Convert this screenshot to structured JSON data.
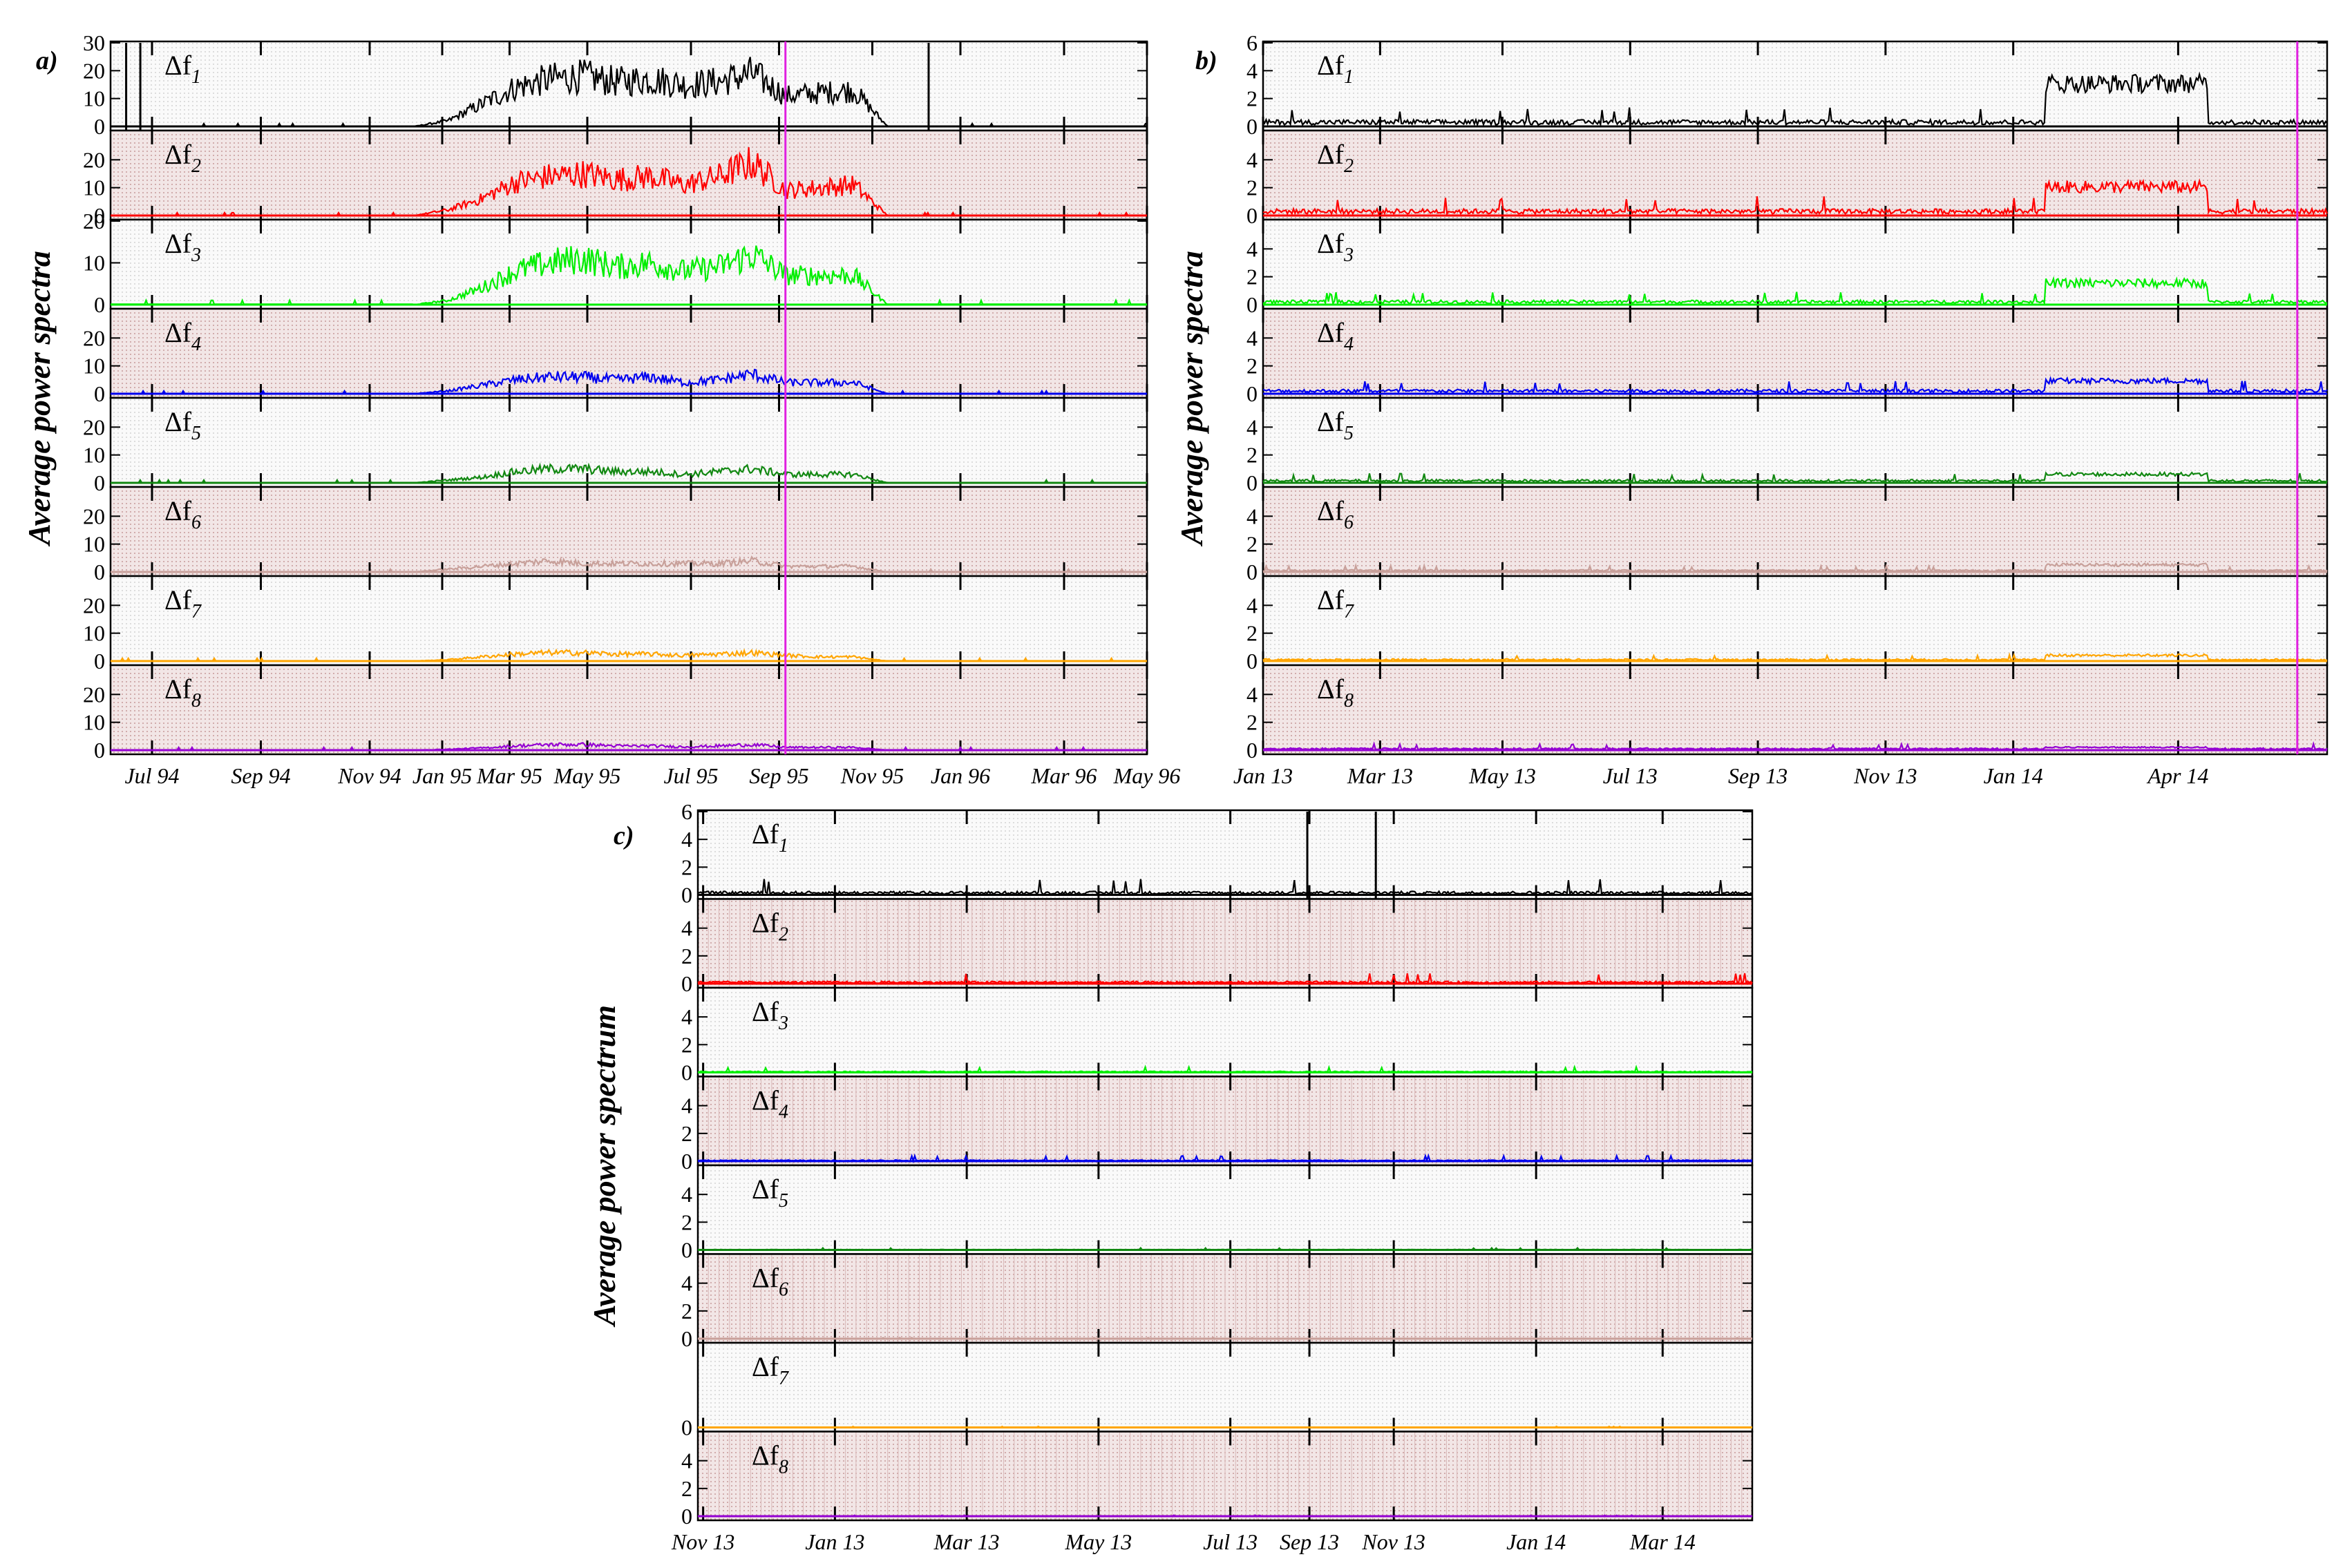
{
  "figure": {
    "colors": {
      "background_odd": "#f2f2f2",
      "background_even": "#e6cfcf",
      "cursor": "#e020e0"
    },
    "series_colors": [
      "#000000",
      "#ff0000",
      "#00ee00",
      "#0000ee",
      "#118811",
      "#c8a09a",
      "#ffa500",
      "#9400d3"
    ],
    "row_labels": [
      "Δf1",
      "Δf2",
      "Δf3",
      "Δf4",
      "Δf5",
      "Δf6",
      "Δf7",
      "Δf8"
    ]
  },
  "chart_data": [
    {
      "panel": "a)",
      "type": "line",
      "ylabel": "Average power spectra",
      "x_ticks": [
        "Jul 94",
        "Sep 94",
        "Nov 94",
        "Jan 95",
        "Mar 95",
        "May 95",
        "Jul 95",
        "Sep 95",
        "Nov 95",
        "Jan 96",
        "Mar 96",
        "May 96"
      ],
      "x_range": [
        "1994-06-01",
        "1996-06-01"
      ],
      "y_ranges": [
        [
          0,
          30
        ],
        [
          0,
          30
        ],
        [
          0,
          20
        ],
        [
          0,
          30
        ],
        [
          0,
          30
        ],
        [
          0,
          30
        ],
        [
          0,
          30
        ],
        [
          0,
          30
        ]
      ],
      "y_ticks": [
        [
          0,
          10,
          20,
          30
        ],
        [
          0,
          10,
          20
        ],
        [
          0,
          10,
          20
        ],
        [
          0,
          10,
          20
        ],
        [
          0,
          10,
          20
        ],
        [
          0,
          10,
          20
        ],
        [
          0,
          10,
          20
        ],
        [
          0,
          10,
          20
        ]
      ],
      "cursor_x": "1995-09-20",
      "series": [
        {
          "label": "Δf1",
          "active_period": [
            "1995-01-01",
            "1995-12-01"
          ],
          "values": [
            0,
            2,
            8,
            14,
            17,
            18,
            16,
            17,
            15,
            16,
            19,
            11,
            12,
            13,
            0
          ],
          "spikes": [
            {
              "x": "1994-06-12",
              "y": 30
            },
            {
              "x": "1994-06-22",
              "y": 30
            },
            {
              "x": "1995-12-30",
              "y": 30
            }
          ]
        },
        {
          "label": "Δf2",
          "active_period": [
            "1995-01-01",
            "1995-12-01"
          ],
          "values": [
            0,
            2,
            6,
            12,
            14,
            15,
            13,
            14,
            11,
            14,
            19,
            9,
            10,
            11,
            0
          ]
        },
        {
          "label": "Δf3",
          "active_period": [
            "1995-01-01",
            "1995-12-01"
          ],
          "values": [
            0,
            1,
            4,
            8,
            10,
            11,
            9,
            10,
            8,
            9,
            12,
            7,
            7,
            7,
            0
          ]
        },
        {
          "label": "Δf4",
          "active_period": [
            "1995-01-01",
            "1995-12-01"
          ],
          "values": [
            0,
            1,
            3,
            5,
            6,
            6,
            5,
            6,
            4,
            5,
            7,
            4,
            4,
            4,
            0
          ]
        },
        {
          "label": "Δf5",
          "active_period": [
            "1995-01-01",
            "1995-12-01"
          ],
          "values": [
            0,
            1,
            2,
            4,
            5,
            5,
            4,
            4,
            3,
            4,
            5,
            3,
            3,
            3,
            0
          ]
        },
        {
          "label": "Δf6",
          "active_period": [
            "1995-01-01",
            "1995-12-01"
          ],
          "values": [
            0,
            1,
            2,
            3,
            4,
            3,
            3,
            3,
            3,
            3,
            4,
            2,
            2,
            2,
            0
          ]
        },
        {
          "label": "Δf7",
          "active_period": [
            "1995-01-01",
            "1995-12-01"
          ],
          "values": [
            0,
            0.5,
            1.5,
            2.5,
            3,
            3,
            2.5,
            2.5,
            2,
            2.5,
            3,
            2,
            1.5,
            1.5,
            0
          ]
        },
        {
          "label": "Δf8",
          "active_period": [
            "1995-01-01",
            "1995-12-01"
          ],
          "values": [
            0,
            0.3,
            0.8,
            1.5,
            2,
            2,
            1.5,
            1.5,
            1.2,
            1.5,
            2,
            1,
            1,
            1,
            0
          ]
        }
      ]
    },
    {
      "panel": "b)",
      "type": "line",
      "ylabel": "Average power spectra",
      "x_ticks": [
        "Jan 13",
        "Mar 13",
        "May 13",
        "Jul 13",
        "Sep 13",
        "Nov 13",
        "Jan 14",
        "Apr 14"
      ],
      "x_range": [
        "2013-01-01",
        "2014-05-15"
      ],
      "y_ranges": [
        [
          0,
          6
        ],
        [
          0,
          6
        ],
        [
          0,
          6
        ],
        [
          0,
          6
        ],
        [
          0,
          6
        ],
        [
          0,
          6
        ],
        [
          0,
          6
        ],
        [
          0,
          6
        ]
      ],
      "y_ticks": [
        [
          0,
          2,
          4,
          6
        ],
        [
          0,
          2,
          4
        ],
        [
          0,
          2,
          4
        ],
        [
          0,
          2,
          4
        ],
        [
          0,
          2,
          4
        ],
        [
          0,
          2,
          4
        ],
        [
          0,
          2,
          4
        ],
        [
          0,
          2,
          4
        ]
      ],
      "cursor_x": "2014-05-01",
      "series": [
        {
          "label": "Δf1",
          "baseline": 0.3,
          "active_period": [
            "2014-01-03",
            "2014-03-20"
          ],
          "active_level": 3.0
        },
        {
          "label": "Δf2",
          "baseline": 0.3,
          "active_period": [
            "2014-01-03",
            "2014-03-20"
          ],
          "active_level": 2.0
        },
        {
          "label": "Δf3",
          "baseline": 0.2,
          "active_period": [
            "2014-01-03",
            "2014-03-20"
          ],
          "active_level": 1.5
        },
        {
          "label": "Δf4",
          "baseline": 0.2,
          "active_period": [
            "2014-01-03",
            "2014-03-20"
          ],
          "active_level": 0.9
        },
        {
          "label": "Δf5",
          "baseline": 0.15,
          "active_period": [
            "2014-01-03",
            "2014-03-20"
          ],
          "active_level": 0.6
        },
        {
          "label": "Δf6",
          "baseline": 0.1,
          "active_period": [
            "2014-01-03",
            "2014-03-20"
          ],
          "active_level": 0.5
        },
        {
          "label": "Δf7",
          "baseline": 0.1,
          "active_period": [
            "2014-01-03",
            "2014-03-20"
          ],
          "active_level": 0.4
        },
        {
          "label": "Δf8",
          "baseline": 0.1,
          "active_period": [
            "2014-01-03",
            "2014-03-20"
          ],
          "active_level": 0.2
        }
      ]
    },
    {
      "panel": "c)",
      "type": "line",
      "ylabel": "Average power spectrum",
      "x_ticks": [
        "Nov 13",
        "Jan 13",
        "Mar 13",
        "May 13",
        "Jul 13",
        "Sep 13",
        "Nov 13",
        "Jan 14",
        "Mar 14"
      ],
      "y_ranges": [
        [
          0,
          6
        ],
        [
          0,
          6
        ],
        [
          0,
          6
        ],
        [
          0,
          6
        ],
        [
          0,
          6
        ],
        [
          0,
          6
        ],
        [
          0,
          6
        ],
        [
          0,
          6
        ]
      ],
      "y_ticks": [
        [
          0,
          2,
          4,
          6
        ],
        [
          0,
          2,
          4
        ],
        [
          0,
          2,
          4
        ],
        [
          0,
          2,
          4
        ],
        [
          0,
          2,
          4
        ],
        [
          0,
          2,
          4
        ],
        [
          0
        ],
        [
          0,
          2,
          4
        ]
      ],
      "series": [
        {
          "label": "Δf1",
          "baseline": 0.15,
          "spikes": [
            {
              "x_frac": 0.578,
              "y": 6
            },
            {
              "x_frac": 0.643,
              "y": 6
            }
          ]
        },
        {
          "label": "Δf2",
          "baseline": 0.1
        },
        {
          "label": "Δf3",
          "baseline": 0.05
        },
        {
          "label": "Δf4",
          "baseline": 0.05
        },
        {
          "label": "Δf5",
          "baseline": 0.02
        },
        {
          "label": "Δf6",
          "baseline": 0.01
        },
        {
          "label": "Δf7",
          "baseline": 0.01
        },
        {
          "label": "Δf8",
          "baseline": 0.01
        }
      ]
    }
  ]
}
